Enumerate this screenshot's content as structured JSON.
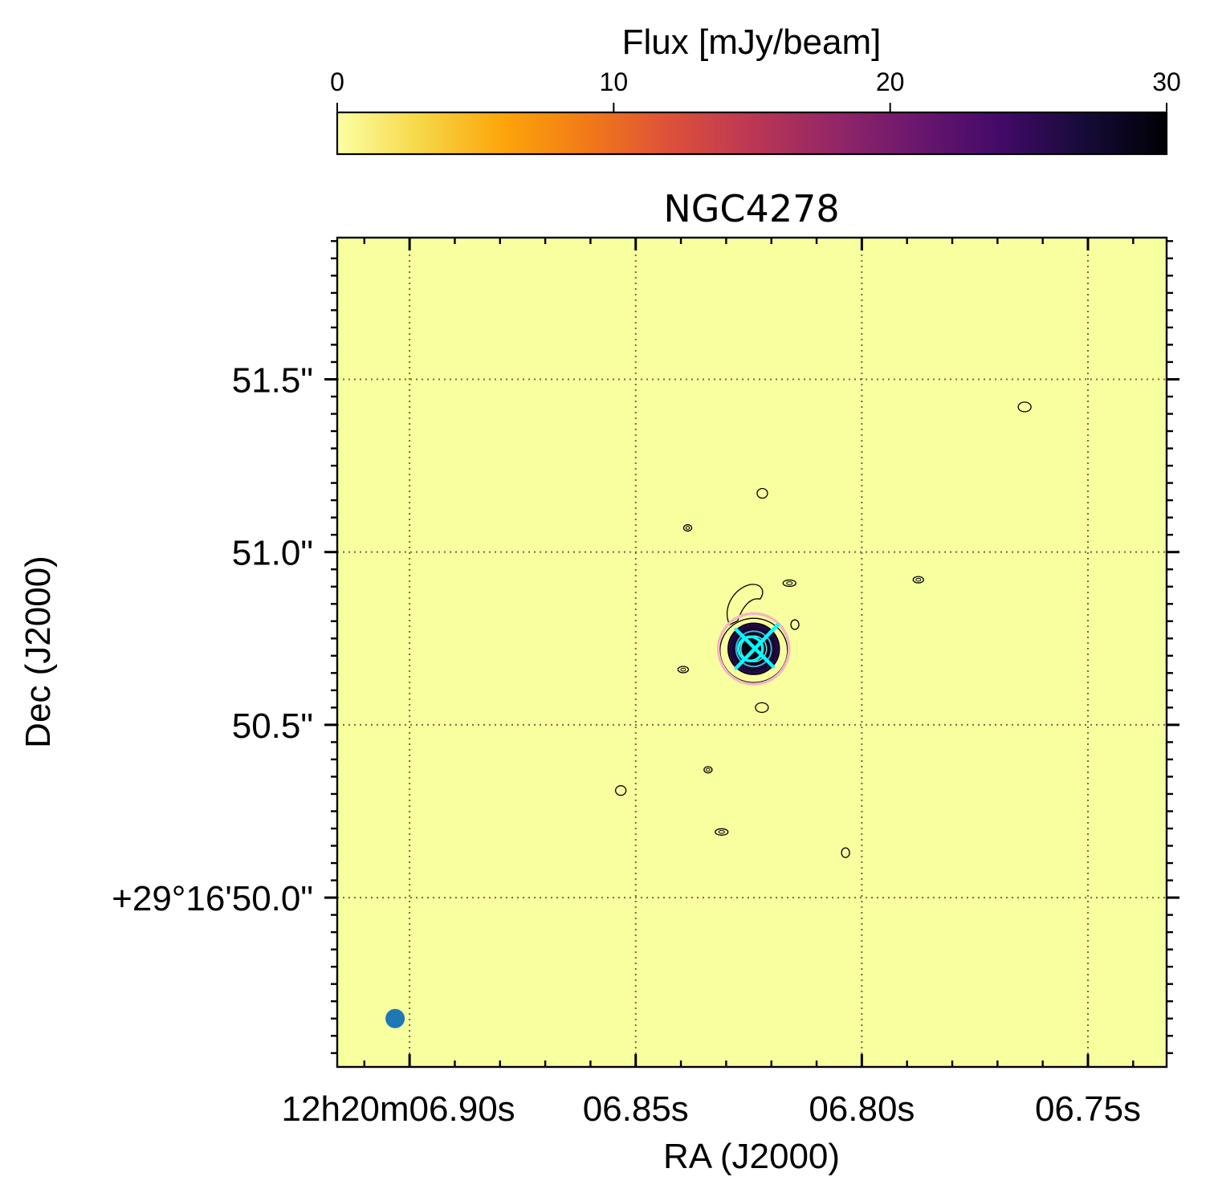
{
  "colors": {
    "background": "#f8ff9e",
    "grid": "#6b6b4a",
    "contour": "#000000",
    "core_fill": "#000004",
    "pink_circle": "#f4b6c2",
    "cyan_marker": "#00ffff",
    "beam_dot": "#1f77b4"
  },
  "colorbar": {
    "label": "Flux [mJy/beam]",
    "min": 0,
    "max": 30,
    "ticks": [
      0,
      10,
      20,
      30
    ],
    "colormap": "inferno_r",
    "stops": [
      "#fcffa4",
      "#f6d746",
      "#fca50a",
      "#f17a17",
      "#dd513a",
      "#bc3754",
      "#932667",
      "#6a176e",
      "#420a68",
      "#160b39",
      "#000004"
    ]
  },
  "chart_data": {
    "type": "heatmap",
    "title": "NGC4278",
    "xlabel": "RA (J2000)",
    "ylabel": "Dec (J2000)",
    "x_tick_labels": [
      "12h20m06.90s",
      "06.85s",
      "06.80s",
      "06.75s"
    ],
    "y_tick_labels": [
      "+29°16'50.0\"",
      "50.5\"",
      "51.0\"",
      "51.5\""
    ],
    "grid": true,
    "x_units": "RA seconds (12h20m + s)",
    "y_units": "Dec arcsec (+29°16' + arcsec)",
    "x_major_ticks": [
      6.9,
      6.85,
      6.8,
      6.75
    ],
    "y_major_ticks": [
      50.0,
      50.5,
      51.0,
      51.5
    ],
    "xlim": [
      6.916,
      6.7326
    ],
    "ylim": [
      49.51,
      51.91
    ],
    "source": {
      "ra_s": 6.8239,
      "dec_as": 50.72,
      "peak_mjy_per_beam": 30
    },
    "contour_islands": [
      {
        "ra_s": 6.8385,
        "dec_as": 51.07
      },
      {
        "ra_s": 6.822,
        "dec_as": 51.17
      },
      {
        "ra_s": 6.816,
        "dec_as": 50.91
      },
      {
        "ra_s": 6.8148,
        "dec_as": 50.79
      },
      {
        "ra_s": 6.8395,
        "dec_as": 50.66
      },
      {
        "ra_s": 6.8221,
        "dec_as": 50.55
      },
      {
        "ra_s": 6.834,
        "dec_as": 50.37
      },
      {
        "ra_s": 6.8533,
        "dec_as": 50.31
      },
      {
        "ra_s": 6.831,
        "dec_as": 50.19
      },
      {
        "ra_s": 6.8036,
        "dec_as": 50.13
      },
      {
        "ra_s": 6.7875,
        "dec_as": 50.92
      },
      {
        "ra_s": 6.764,
        "dec_as": 51.42
      }
    ],
    "beam_marker": {
      "ra_s": 6.9032,
      "dec_as": 49.65
    }
  }
}
